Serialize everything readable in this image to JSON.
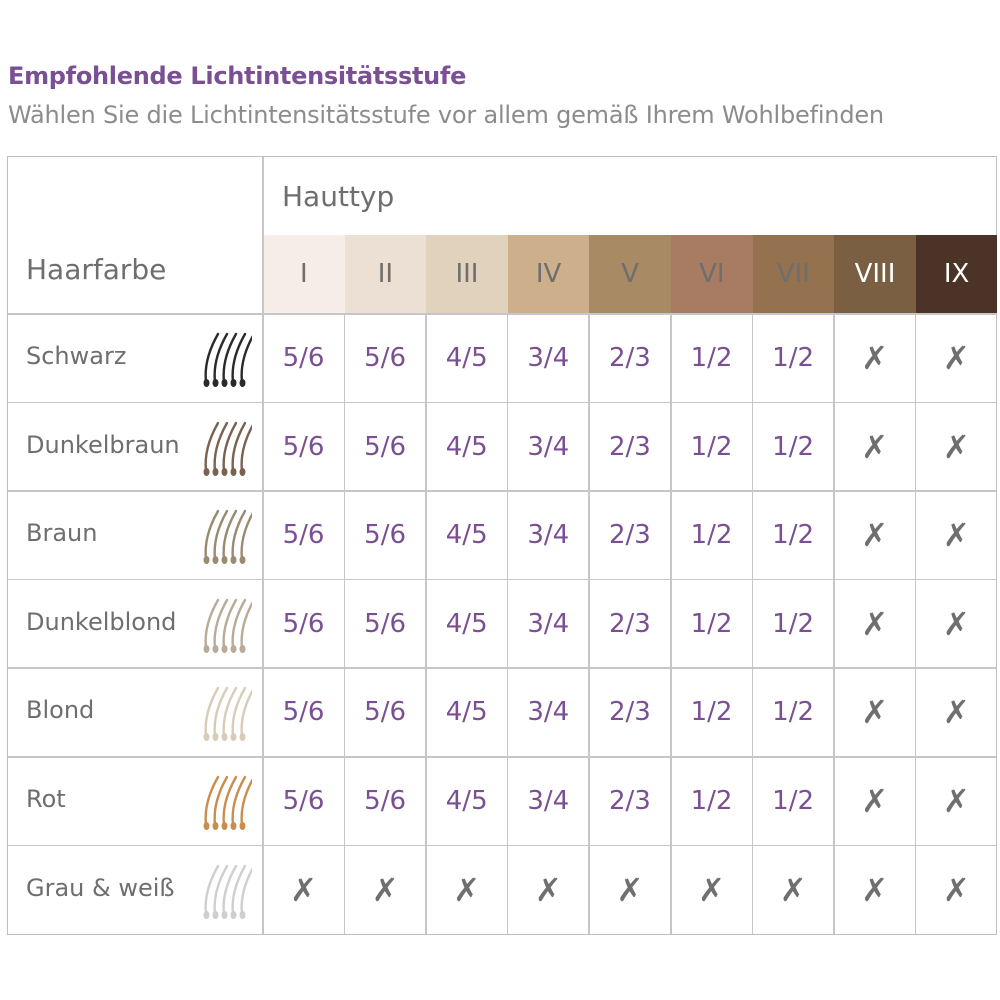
{
  "title": "Empfohlende Lichtintensitätsstufe",
  "subtitle": "Wählen Sie die Lichtintensitätsstufe vor allem gemäß Ihrem Wohlbefinden",
  "table": {
    "col_header": "Hauttyp",
    "row_header": "Haarfarbe",
    "skin_types": [
      {
        "label": "I",
        "color": "#f6ece8",
        "text_color": "#6e6e6e"
      },
      {
        "label": "II",
        "color": "#ece0d4",
        "text_color": "#6e6e6e"
      },
      {
        "label": "III",
        "color": "#e0d2bd",
        "text_color": "#6e6e6e"
      },
      {
        "label": "IV",
        "color": "#cdb08b",
        "text_color": "#6e6e6e"
      },
      {
        "label": "V",
        "color": "#a88a64",
        "text_color": "#6e6e6e"
      },
      {
        "label": "VI",
        "color": "#a87c63",
        "text_color": "#6e6e6e"
      },
      {
        "label": "VII",
        "color": "#94714f",
        "text_color": "#6e6e6e"
      },
      {
        "label": "VIII",
        "color": "#7a5f42",
        "text_color": "#ffffff"
      },
      {
        "label": "IX",
        "color": "#4b3328",
        "text_color": "#ffffff"
      }
    ],
    "rows": [
      {
        "name": "Schwarz",
        "hair_color": "#2a2a2a",
        "hair_icon": "hair-strands-icon",
        "values": [
          "5/6",
          "5/6",
          "4/5",
          "3/4",
          "2/3",
          "1/2",
          "1/2",
          "✗",
          "✗"
        ]
      },
      {
        "name": "Dunkelbraun",
        "hair_color": "#7b6150",
        "hair_icon": "hair-strands-icon",
        "values": [
          "5/6",
          "5/6",
          "4/5",
          "3/4",
          "2/3",
          "1/2",
          "1/2",
          "✗",
          "✗"
        ]
      },
      {
        "name": "Braun",
        "hair_color": "#9a8a70",
        "hair_icon": "hair-strands-icon",
        "values": [
          "5/6",
          "5/6",
          "4/5",
          "3/4",
          "2/3",
          "1/2",
          "1/2",
          "✗",
          "✗"
        ]
      },
      {
        "name": "Dunkelblond",
        "hair_color": "#b8ab98",
        "hair_icon": "hair-strands-icon",
        "values": [
          "5/6",
          "5/6",
          "4/5",
          "3/4",
          "2/3",
          "1/2",
          "1/2",
          "✗",
          "✗"
        ]
      },
      {
        "name": "Blond",
        "hair_color": "#d9ccb6",
        "hair_icon": "hair-strands-icon",
        "values": [
          "5/6",
          "5/6",
          "4/5",
          "3/4",
          "2/3",
          "1/2",
          "1/2",
          "✗",
          "✗"
        ]
      },
      {
        "name": "Rot",
        "hair_color": "#c98e4e",
        "hair_icon": "hair-strands-icon",
        "values": [
          "5/6",
          "5/6",
          "4/5",
          "3/4",
          "2/3",
          "1/2",
          "1/2",
          "✗",
          "✗"
        ]
      },
      {
        "name": "Grau & weiß",
        "hair_color": "#cfcfcf",
        "hair_icon": "hair-strands-icon",
        "values": [
          "✗",
          "✗",
          "✗",
          "✗",
          "✗",
          "✗",
          "✗",
          "✗",
          "✗"
        ]
      }
    ]
  }
}
